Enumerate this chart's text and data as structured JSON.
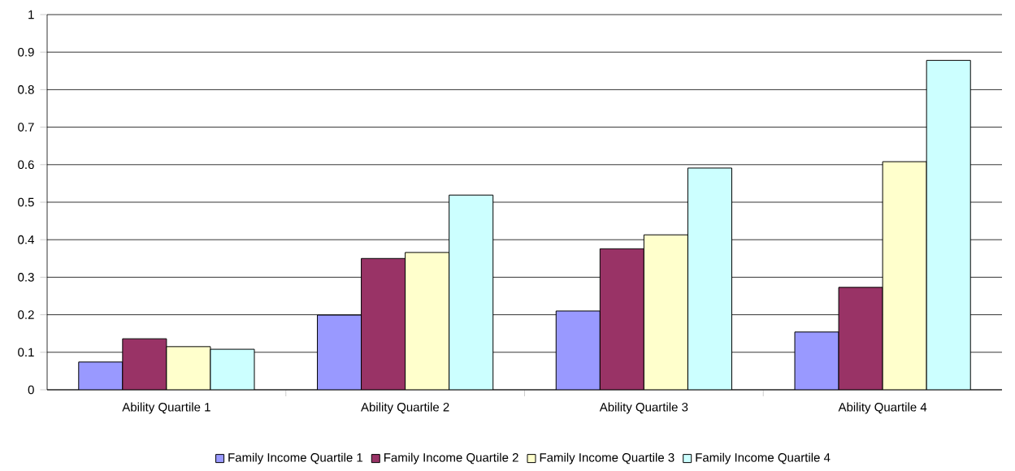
{
  "chart_data": {
    "type": "bar",
    "categories": [
      "Ability Quartile 1",
      "Ability Quartile 2",
      "Ability Quartile 3",
      "Ability Quartile 4"
    ],
    "series": [
      {
        "name": "Family Income Quartile 1",
        "color": "#9999ff",
        "values": [
          0.074,
          0.199,
          0.21,
          0.154
        ]
      },
      {
        "name": "Family Income Quartile 2",
        "color": "#993366",
        "values": [
          0.136,
          0.35,
          0.376,
          0.273
        ]
      },
      {
        "name": "Family Income Quartile 3",
        "color": "#ffffcc",
        "values": [
          0.115,
          0.366,
          0.413,
          0.608
        ]
      },
      {
        "name": "Family Income Quartile 4",
        "color": "#ccffff",
        "values": [
          0.108,
          0.519,
          0.591,
          0.878
        ]
      }
    ],
    "ylim": [
      0,
      1
    ],
    "yticks": [
      0,
      0.1,
      0.2,
      0.3,
      0.4,
      0.5,
      0.6,
      0.7,
      0.8,
      0.9,
      1
    ],
    "grid": "y",
    "legend": "bottom"
  }
}
